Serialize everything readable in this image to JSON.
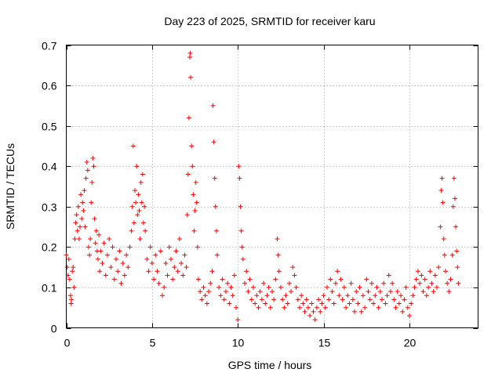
{
  "chart_data": {
    "type": "scatter",
    "title": "Day 223 of 2025, SRMTID for receiver karu",
    "xlabel": "GPS time / hours",
    "ylabel": "SRMTID / TECUs",
    "xlim": [
      0,
      24
    ],
    "ylim": [
      0,
      0.7
    ],
    "grid": true,
    "marker": "+",
    "marker_color": "#ff0000",
    "x_ticks": [
      0,
      5,
      10,
      15,
      20
    ],
    "x_tick_labels": [
      "0",
      "5",
      "10",
      "15",
      "20"
    ],
    "y_ticks": [
      0,
      0.1,
      0.2,
      0.3,
      0.4,
      0.5,
      0.6,
      0.7
    ],
    "y_tick_labels": [
      "0",
      "0.1",
      "0.2",
      "0.3",
      "0.4",
      "0.5",
      "0.6",
      "0.7"
    ],
    "series": [
      {
        "name": "SRMTID",
        "points": [
          [
            0.0,
            0.18
          ],
          [
            0.05,
            0.15
          ],
          [
            0.1,
            0.13
          ],
          [
            0.15,
            0.17
          ],
          [
            0.2,
            0.12
          ],
          [
            0.25,
            0.08
          ],
          [
            0.28,
            0.06
          ],
          [
            0.3,
            0.07
          ],
          [
            0.35,
            0.14
          ],
          [
            0.4,
            0.15
          ],
          [
            0.45,
            0.1
          ],
          [
            0.5,
            0.22
          ],
          [
            0.55,
            0.26
          ],
          [
            0.6,
            0.28
          ],
          [
            0.65,
            0.24
          ],
          [
            0.7,
            0.3
          ],
          [
            0.75,
            0.22
          ],
          [
            0.8,
            0.25
          ],
          [
            0.85,
            0.33
          ],
          [
            0.9,
            0.27
          ],
          [
            0.95,
            0.31
          ],
          [
            1.0,
            0.29
          ],
          [
            1.05,
            0.34
          ],
          [
            1.1,
            0.25
          ],
          [
            1.15,
            0.37
          ],
          [
            1.2,
            0.41
          ],
          [
            1.25,
            0.39
          ],
          [
            1.3,
            0.2
          ],
          [
            1.35,
            0.18
          ],
          [
            1.4,
            0.22
          ],
          [
            1.45,
            0.31
          ],
          [
            1.5,
            0.36
          ],
          [
            1.55,
            0.42
          ],
          [
            1.6,
            0.4
          ],
          [
            1.65,
            0.27
          ],
          [
            1.7,
            0.21
          ],
          [
            1.75,
            0.24
          ],
          [
            1.8,
            0.19
          ],
          [
            1.85,
            0.17
          ],
          [
            1.9,
            0.23
          ],
          [
            1.95,
            0.14
          ],
          [
            2.0,
            0.19
          ],
          [
            2.1,
            0.16
          ],
          [
            2.2,
            0.21
          ],
          [
            2.3,
            0.13
          ],
          [
            2.4,
            0.18
          ],
          [
            2.5,
            0.22
          ],
          [
            2.6,
            0.15
          ],
          [
            2.7,
            0.2
          ],
          [
            2.8,
            0.12
          ],
          [
            2.9,
            0.17
          ],
          [
            3.0,
            0.14
          ],
          [
            3.1,
            0.19
          ],
          [
            3.2,
            0.11
          ],
          [
            3.3,
            0.16
          ],
          [
            3.4,
            0.13
          ],
          [
            3.5,
            0.18
          ],
          [
            3.6,
            0.15
          ],
          [
            3.7,
            0.2
          ],
          [
            3.8,
            0.24
          ],
          [
            3.85,
            0.3
          ],
          [
            3.9,
            0.45
          ],
          [
            3.95,
            0.26
          ],
          [
            4.0,
            0.34
          ],
          [
            4.05,
            0.31
          ],
          [
            4.1,
            0.4
          ],
          [
            4.15,
            0.28
          ],
          [
            4.2,
            0.33
          ],
          [
            4.25,
            0.29
          ],
          [
            4.3,
            0.22
          ],
          [
            4.35,
            0.36
          ],
          [
            4.4,
            0.31
          ],
          [
            4.45,
            0.38
          ],
          [
            4.5,
            0.26
          ],
          [
            4.55,
            0.3
          ],
          [
            4.6,
            0.24
          ],
          [
            4.7,
            0.17
          ],
          [
            4.8,
            0.14
          ],
          [
            4.9,
            0.2
          ],
          [
            5.0,
            0.16
          ],
          [
            5.1,
            0.12
          ],
          [
            5.2,
            0.18
          ],
          [
            5.3,
            0.14
          ],
          [
            5.4,
            0.11
          ],
          [
            5.5,
            0.19
          ],
          [
            5.6,
            0.08
          ],
          [
            5.7,
            0.1
          ],
          [
            5.8,
            0.16
          ],
          [
            5.9,
            0.13
          ],
          [
            6.0,
            0.2
          ],
          [
            6.1,
            0.17
          ],
          [
            6.2,
            0.12
          ],
          [
            6.3,
            0.15
          ],
          [
            6.4,
            0.19
          ],
          [
            6.5,
            0.14
          ],
          [
            6.6,
            0.22
          ],
          [
            6.7,
            0.16
          ],
          [
            6.8,
            0.13
          ],
          [
            6.9,
            0.18
          ],
          [
            7.0,
            0.15
          ],
          [
            7.05,
            0.28
          ],
          [
            7.1,
            0.38
          ],
          [
            7.15,
            0.52
          ],
          [
            7.2,
            0.67
          ],
          [
            7.22,
            0.68
          ],
          [
            7.25,
            0.62
          ],
          [
            7.3,
            0.45
          ],
          [
            7.35,
            0.4
          ],
          [
            7.4,
            0.33
          ],
          [
            7.45,
            0.24
          ],
          [
            7.5,
            0.29
          ],
          [
            7.55,
            0.36
          ],
          [
            7.6,
            0.31
          ],
          [
            7.65,
            0.2
          ],
          [
            7.7,
            0.12
          ],
          [
            7.8,
            0.09
          ],
          [
            7.9,
            0.07
          ],
          [
            8.0,
            0.1
          ],
          [
            8.1,
            0.08
          ],
          [
            8.2,
            0.06
          ],
          [
            8.3,
            0.09
          ],
          [
            8.4,
            0.11
          ],
          [
            8.5,
            0.14
          ],
          [
            8.55,
            0.55
          ],
          [
            8.6,
            0.46
          ],
          [
            8.65,
            0.37
          ],
          [
            8.7,
            0.3
          ],
          [
            8.75,
            0.24
          ],
          [
            8.8,
            0.18
          ],
          [
            8.9,
            0.1
          ],
          [
            9.0,
            0.08
          ],
          [
            9.1,
            0.12
          ],
          [
            9.2,
            0.07
          ],
          [
            9.3,
            0.09
          ],
          [
            9.4,
            0.11
          ],
          [
            9.5,
            0.06
          ],
          [
            9.6,
            0.1
          ],
          [
            9.7,
            0.08
          ],
          [
            9.8,
            0.13
          ],
          [
            9.9,
            0.05
          ],
          [
            10.0,
            0.02
          ],
          [
            10.05,
            0.4
          ],
          [
            10.1,
            0.37
          ],
          [
            10.15,
            0.3
          ],
          [
            10.2,
            0.24
          ],
          [
            10.25,
            0.2
          ],
          [
            10.3,
            0.17
          ],
          [
            10.4,
            0.11
          ],
          [
            10.5,
            0.14
          ],
          [
            10.6,
            0.09
          ],
          [
            10.7,
            0.12
          ],
          [
            10.8,
            0.07
          ],
          [
            10.9,
            0.1
          ],
          [
            11.0,
            0.06
          ],
          [
            11.1,
            0.08
          ],
          [
            11.2,
            0.05
          ],
          [
            11.3,
            0.09
          ],
          [
            11.4,
            0.07
          ],
          [
            11.5,
            0.11
          ],
          [
            11.6,
            0.06
          ],
          [
            11.7,
            0.08
          ],
          [
            11.8,
            0.1
          ],
          [
            11.9,
            0.05
          ],
          [
            12.0,
            0.09
          ],
          [
            12.1,
            0.07
          ],
          [
            12.2,
            0.12
          ],
          [
            12.3,
            0.22
          ],
          [
            12.35,
            0.18
          ],
          [
            12.4,
            0.14
          ],
          [
            12.5,
            0.1
          ],
          [
            12.6,
            0.07
          ],
          [
            12.7,
            0.05
          ],
          [
            12.8,
            0.08
          ],
          [
            12.9,
            0.06
          ],
          [
            13.0,
            0.11
          ],
          [
            13.1,
            0.09
          ],
          [
            13.2,
            0.15
          ],
          [
            13.3,
            0.13
          ],
          [
            13.4,
            0.1
          ],
          [
            13.5,
            0.07
          ],
          [
            13.6,
            0.05
          ],
          [
            13.7,
            0.08
          ],
          [
            13.8,
            0.06
          ],
          [
            13.9,
            0.04
          ],
          [
            14.0,
            0.07
          ],
          [
            14.1,
            0.05
          ],
          [
            14.2,
            0.03
          ],
          [
            14.3,
            0.06
          ],
          [
            14.4,
            0.04
          ],
          [
            14.5,
            0.02
          ],
          [
            14.6,
            0.05
          ],
          [
            14.7,
            0.07
          ],
          [
            14.8,
            0.04
          ],
          [
            14.9,
            0.06
          ],
          [
            15.0,
            0.08
          ],
          [
            15.1,
            0.05
          ],
          [
            15.2,
            0.1
          ],
          [
            15.3,
            0.07
          ],
          [
            15.4,
            0.12
          ],
          [
            15.5,
            0.09
          ],
          [
            15.6,
            0.06
          ],
          [
            15.7,
            0.11
          ],
          [
            15.8,
            0.14
          ],
          [
            15.9,
            0.08
          ],
          [
            16.0,
            0.12
          ],
          [
            16.1,
            0.07
          ],
          [
            16.2,
            0.1
          ],
          [
            16.3,
            0.05
          ],
          [
            16.4,
            0.08
          ],
          [
            16.5,
            0.06
          ],
          [
            16.6,
            0.11
          ],
          [
            16.7,
            0.07
          ],
          [
            16.8,
            0.04
          ],
          [
            16.9,
            0.09
          ],
          [
            17.0,
            0.06
          ],
          [
            17.1,
            0.1
          ],
          [
            17.2,
            0.04
          ],
          [
            17.3,
            0.08
          ],
          [
            17.4,
            0.05
          ],
          [
            17.5,
            0.12
          ],
          [
            17.6,
            0.09
          ],
          [
            17.7,
            0.07
          ],
          [
            17.8,
            0.11
          ],
          [
            17.9,
            0.06
          ],
          [
            18.0,
            0.08
          ],
          [
            18.1,
            0.1
          ],
          [
            18.2,
            0.05
          ],
          [
            18.3,
            0.09
          ],
          [
            18.4,
            0.07
          ],
          [
            18.5,
            0.11
          ],
          [
            18.6,
            0.06
          ],
          [
            18.7,
            0.08
          ],
          [
            18.8,
            0.13
          ],
          [
            18.9,
            0.09
          ],
          [
            19.0,
            0.11
          ],
          [
            19.1,
            0.07
          ],
          [
            19.2,
            0.05
          ],
          [
            19.3,
            0.09
          ],
          [
            19.4,
            0.06
          ],
          [
            19.5,
            0.08
          ],
          [
            19.6,
            0.04
          ],
          [
            19.7,
            0.07
          ],
          [
            19.8,
            0.1
          ],
          [
            19.9,
            0.05
          ],
          [
            20.0,
            0.03
          ],
          [
            20.1,
            0.06
          ],
          [
            20.2,
            0.08
          ],
          [
            20.3,
            0.1
          ],
          [
            20.4,
            0.12
          ],
          [
            20.5,
            0.14
          ],
          [
            20.6,
            0.11
          ],
          [
            20.7,
            0.13
          ],
          [
            20.8,
            0.09
          ],
          [
            20.9,
            0.12
          ],
          [
            21.0,
            0.08
          ],
          [
            21.1,
            0.1
          ],
          [
            21.2,
            0.14
          ],
          [
            21.3,
            0.11
          ],
          [
            21.4,
            0.09
          ],
          [
            21.5,
            0.13
          ],
          [
            21.6,
            0.1
          ],
          [
            21.7,
            0.15
          ],
          [
            21.8,
            0.25
          ],
          [
            21.85,
            0.34
          ],
          [
            21.9,
            0.37
          ],
          [
            21.95,
            0.31
          ],
          [
            22.0,
            0.22
          ],
          [
            22.05,
            0.18
          ],
          [
            22.1,
            0.14
          ],
          [
            22.2,
            0.11
          ],
          [
            22.3,
            0.09
          ],
          [
            22.4,
            0.12
          ],
          [
            22.5,
            0.18
          ],
          [
            22.55,
            0.3
          ],
          [
            22.6,
            0.37
          ],
          [
            22.65,
            0.32
          ],
          [
            22.7,
            0.25
          ],
          [
            22.75,
            0.19
          ],
          [
            22.8,
            0.15
          ],
          [
            22.85,
            0.11
          ]
        ]
      }
    ]
  }
}
